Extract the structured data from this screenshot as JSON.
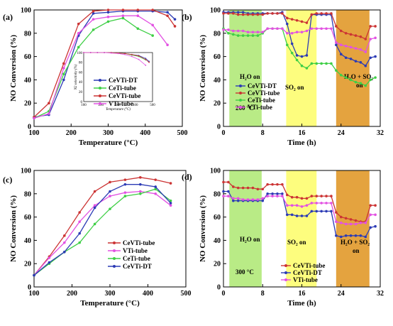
{
  "colors": {
    "CeVTi-DT": "#2c3bb5",
    "CeVTi-tube": "#cc3434",
    "CeTi-tube": "#3fcf46",
    "VTi-tube": "#e252e2",
    "band_h2o": "#b9eb86",
    "band_so2": "#fdfd7e",
    "band_both": "#e4a33f"
  },
  "chart_data": [
    {
      "type": "line",
      "panel_label": "(a)",
      "xlabel": "Temperature (°C)",
      "ylabel": "NO Conversion (%)",
      "xlim": [
        100,
        500
      ],
      "ylim": [
        0,
        100
      ],
      "xticks": [
        100,
        200,
        300,
        400,
        500
      ],
      "yticks": [
        0,
        20,
        40,
        60,
        80,
        100
      ],
      "legend_position": "inset-left",
      "series": [
        {
          "name": "CeVTi-DT",
          "marker": "circle",
          "x": [
            100,
            140,
            180,
            220,
            260,
            300,
            340,
            380,
            420,
            460,
            480
          ],
          "y": [
            8,
            10,
            40,
            78,
            97,
            98,
            99,
            99,
            99,
            98,
            92
          ]
        },
        {
          "name": "CeTi-tube",
          "marker": "circle",
          "x": [
            100,
            140,
            180,
            220,
            260,
            300,
            340,
            380,
            420
          ],
          "y": [
            7,
            13,
            45,
            68,
            83,
            90,
            93,
            84,
            78
          ]
        },
        {
          "name": "CeVTi-tube",
          "marker": "circle",
          "x": [
            100,
            140,
            180,
            220,
            260,
            300,
            340,
            380,
            420,
            460,
            480
          ],
          "y": [
            8,
            20,
            54,
            88,
            99,
            100,
            100,
            100,
            100,
            95,
            86
          ]
        },
        {
          "name": "VTi-tube",
          "marker": "circle",
          "x": [
            100,
            140,
            180,
            220,
            260,
            300,
            340,
            380,
            420,
            460
          ],
          "y": [
            7,
            11,
            50,
            80,
            92,
            94,
            95,
            95,
            87,
            70
          ]
        }
      ],
      "inset": {
        "xlabel": "Temperature (°C)",
        "ylabel": "N2 selectivity (%)",
        "xlim": [
          100,
          500
        ],
        "ylim": [
          0,
          100
        ],
        "xticks": [
          100,
          200,
          300,
          400,
          500
        ],
        "yticks": [
          0,
          20,
          40,
          60,
          80,
          100
        ],
        "series": [
          {
            "name": "CeVTi-DT",
            "x": [
              100,
              140,
              180,
              220,
              260,
              300,
              340,
              380,
              420,
              460,
              480
            ],
            "y": [
              100,
              100,
              100,
              100,
              100,
              99,
              98,
              96,
              94,
              88,
              82
            ]
          },
          {
            "name": "CeTi-tube",
            "x": [
              100,
              140,
              180,
              220,
              260,
              300,
              340,
              380,
              420,
              460
            ],
            "y": [
              100,
              100,
              100,
              100,
              100,
              99,
              98,
              95,
              92,
              85
            ]
          },
          {
            "name": "CeVTi-tube",
            "x": [
              100,
              140,
              180,
              220,
              260,
              300,
              340,
              380,
              420,
              460,
              480
            ],
            "y": [
              100,
              100,
              100,
              100,
              100,
              99,
              98,
              96,
              93,
              86,
              80
            ]
          },
          {
            "name": "VTi-tube",
            "x": [
              100,
              140,
              180,
              220,
              260,
              300,
              340,
              380,
              420,
              460
            ],
            "y": [
              100,
              100,
              100,
              100,
              99,
              98,
              96,
              92,
              86,
              74
            ]
          }
        ]
      }
    },
    {
      "type": "line",
      "panel_label": "(b)",
      "xlabel": "Time (h)",
      "ylabel": "NO Conversion (%)",
      "xlim": [
        0,
        32
      ],
      "ylim": [
        0,
        100
      ],
      "xticks": [
        0,
        8,
        16,
        24,
        32
      ],
      "yticks": [
        0,
        20,
        40,
        60,
        80,
        100
      ],
      "legend_position": "center",
      "bands": [
        {
          "x": [
            1.2,
            7.8
          ],
          "color_key": "band_h2o",
          "label": "H₂O on"
        },
        {
          "x": [
            12.8,
            19
          ],
          "color_key": "band_so2",
          "label": "SO₂ on"
        },
        {
          "x": [
            23,
            29.8
          ],
          "color_key": "band_both",
          "label": "H₂O + SO₂",
          "label2": "on"
        }
      ],
      "annotation": "260 °C",
      "series": [
        {
          "name": "CeVTi-DT",
          "marker": "circle",
          "x": [
            0,
            1,
            2,
            3,
            4,
            5,
            6,
            7,
            8,
            9,
            10,
            11,
            12,
            13,
            14,
            15,
            16,
            17,
            18,
            19,
            20,
            21,
            22,
            23,
            24,
            25,
            26,
            27,
            28,
            29,
            30,
            31
          ],
          "y": [
            98,
            98,
            98,
            98,
            98,
            97,
            97,
            97,
            97,
            97,
            97,
            97,
            98,
            88,
            71,
            61,
            60,
            61,
            96,
            96,
            96,
            96,
            96,
            70,
            62,
            59,
            58,
            56,
            55,
            52,
            59,
            60
          ]
        },
        {
          "name": "CeVTi-tube",
          "marker": "circle",
          "x": [
            0,
            1,
            2,
            3,
            4,
            5,
            6,
            7,
            8,
            9,
            10,
            11,
            12,
            13,
            14,
            15,
            16,
            17,
            18,
            19,
            20,
            21,
            22,
            23,
            24,
            25,
            26,
            27,
            28,
            29,
            30,
            31
          ],
          "y": [
            97,
            97,
            97,
            96,
            96,
            96,
            96,
            96,
            96,
            97,
            97,
            97,
            97,
            93,
            92,
            91,
            90,
            89,
            96,
            97,
            97,
            97,
            97,
            86,
            82,
            80,
            79,
            78,
            77,
            75,
            86,
            86
          ]
        },
        {
          "name": "CeTi-tube",
          "marker": "circle",
          "x": [
            0,
            1,
            2,
            3,
            4,
            5,
            6,
            7,
            8,
            9,
            10,
            11,
            12,
            13,
            14,
            15,
            16,
            17,
            18,
            19,
            20,
            21,
            22,
            23,
            24,
            25,
            26,
            27,
            28,
            29,
            30,
            31
          ],
          "y": [
            84,
            80,
            79,
            78,
            78,
            78,
            78,
            78,
            80,
            84,
            84,
            84,
            84,
            70,
            63,
            57,
            52,
            50,
            54,
            54,
            54,
            54,
            54,
            48,
            44,
            42,
            40,
            38,
            37,
            35,
            40,
            42
          ]
        },
        {
          "name": "VTi-tube",
          "marker": "circle",
          "x": [
            0,
            1,
            2,
            3,
            4,
            5,
            6,
            7,
            8,
            9,
            10,
            11,
            12,
            13,
            14,
            15,
            16,
            17,
            18,
            19,
            20,
            21,
            22,
            23,
            24,
            25,
            26,
            27,
            28,
            29,
            30,
            31
          ],
          "y": [
            83,
            83,
            82,
            82,
            82,
            81,
            81,
            81,
            81,
            84,
            84,
            84,
            84,
            80,
            80,
            81,
            81,
            82,
            84,
            84,
            84,
            84,
            84,
            72,
            70,
            69,
            68,
            67,
            66,
            64,
            75,
            76
          ]
        }
      ]
    },
    {
      "type": "line",
      "panel_label": "(c)",
      "xlabel": "Temperature (°C)",
      "ylabel": "NO Conversion (%)",
      "xlim": [
        100,
        500
      ],
      "ylim": [
        0,
        100
      ],
      "xticks": [
        100,
        200,
        300,
        400,
        500
      ],
      "yticks": [
        0,
        20,
        40,
        60,
        80,
        100
      ],
      "legend_position": "bottom-right",
      "series": [
        {
          "name": "CeVTi-tube",
          "marker": "circle",
          "x": [
            100,
            140,
            180,
            220,
            260,
            300,
            340,
            380,
            420,
            460
          ],
          "y": [
            10,
            26,
            44,
            64,
            82,
            90,
            92,
            94,
            92,
            89
          ]
        },
        {
          "name": "VTi-tube",
          "marker": "circle",
          "x": [
            100,
            140,
            180,
            220,
            260,
            300,
            340,
            380,
            420,
            460
          ],
          "y": [
            10,
            25,
            38,
            56,
            70,
            78,
            81,
            82,
            80,
            70
          ]
        },
        {
          "name": "CeTi-tube",
          "marker": "circle",
          "x": [
            100,
            140,
            180,
            220,
            260,
            300,
            340,
            380,
            420,
            460
          ],
          "y": [
            10,
            20,
            30,
            38,
            54,
            67,
            78,
            80,
            84,
            74
          ]
        },
        {
          "name": "CeVTi-DT",
          "marker": "circle",
          "x": [
            100,
            140,
            180,
            220,
            260,
            300,
            340,
            380,
            420,
            460
          ],
          "y": [
            10,
            21,
            30,
            46,
            68,
            82,
            88,
            88,
            86,
            72
          ]
        }
      ]
    },
    {
      "type": "line",
      "panel_label": "(d)",
      "xlabel": "Time (h)",
      "ylabel": "NO Conversion (%)",
      "xlim": [
        0,
        32
      ],
      "ylim": [
        0,
        100
      ],
      "xticks": [
        0,
        8,
        16,
        24,
        32
      ],
      "yticks": [
        0,
        20,
        40,
        60,
        80,
        100
      ],
      "legend_position": "bottom-center",
      "bands": [
        {
          "x": [
            1.2,
            7.8
          ],
          "color_key": "band_h2o",
          "label": "H₂O on"
        },
        {
          "x": [
            12.8,
            19
          ],
          "color_key": "band_so2",
          "label": "SO₂ on"
        },
        {
          "x": [
            23,
            29.8
          ],
          "color_key": "band_both",
          "label": "H₂O + SO₂",
          "label2": "on"
        }
      ],
      "annotation": "300 °C",
      "series": [
        {
          "name": "CeVTi-tube",
          "marker": "circle",
          "x": [
            0,
            1,
            2,
            3,
            4,
            5,
            6,
            7,
            8,
            9,
            10,
            11,
            12,
            13,
            14,
            15,
            16,
            17,
            18,
            19,
            20,
            21,
            22,
            23,
            24,
            25,
            26,
            27,
            28,
            29,
            30,
            31
          ],
          "y": [
            90,
            90,
            86,
            85,
            85,
            85,
            85,
            84,
            84,
            88,
            88,
            88,
            88,
            79,
            77,
            77,
            76,
            76,
            78,
            78,
            78,
            78,
            78,
            64,
            60,
            59,
            58,
            57,
            56,
            56,
            70,
            70
          ]
        },
        {
          "name": "CeVTi-DT",
          "marker": "circle",
          "x": [
            0,
            1,
            2,
            3,
            4,
            5,
            6,
            7,
            8,
            9,
            10,
            11,
            12,
            13,
            14,
            15,
            16,
            17,
            18,
            19,
            20,
            21,
            22,
            23,
            24,
            25,
            26,
            27,
            28,
            29,
            30,
            31
          ],
          "y": [
            82,
            82,
            74,
            74,
            74,
            74,
            74,
            74,
            74,
            80,
            80,
            80,
            80,
            62,
            62,
            61,
            61,
            61,
            65,
            65,
            65,
            65,
            65,
            44,
            43,
            44,
            44,
            44,
            44,
            43,
            51,
            52
          ]
        },
        {
          "name": "VTi-tube",
          "marker": "circle",
          "x": [
            0,
            1,
            2,
            3,
            4,
            5,
            6,
            7,
            8,
            9,
            10,
            11,
            12,
            13,
            14,
            15,
            16,
            17,
            18,
            19,
            20,
            21,
            22,
            23,
            24,
            25,
            26,
            27,
            28,
            29,
            30,
            31
          ],
          "y": [
            78,
            78,
            76,
            76,
            75,
            75,
            75,
            75,
            76,
            78,
            78,
            78,
            78,
            70,
            70,
            70,
            69,
            70,
            72,
            72,
            72,
            72,
            72,
            56,
            55,
            54,
            54,
            54,
            55,
            55,
            62,
            62
          ]
        }
      ]
    }
  ]
}
